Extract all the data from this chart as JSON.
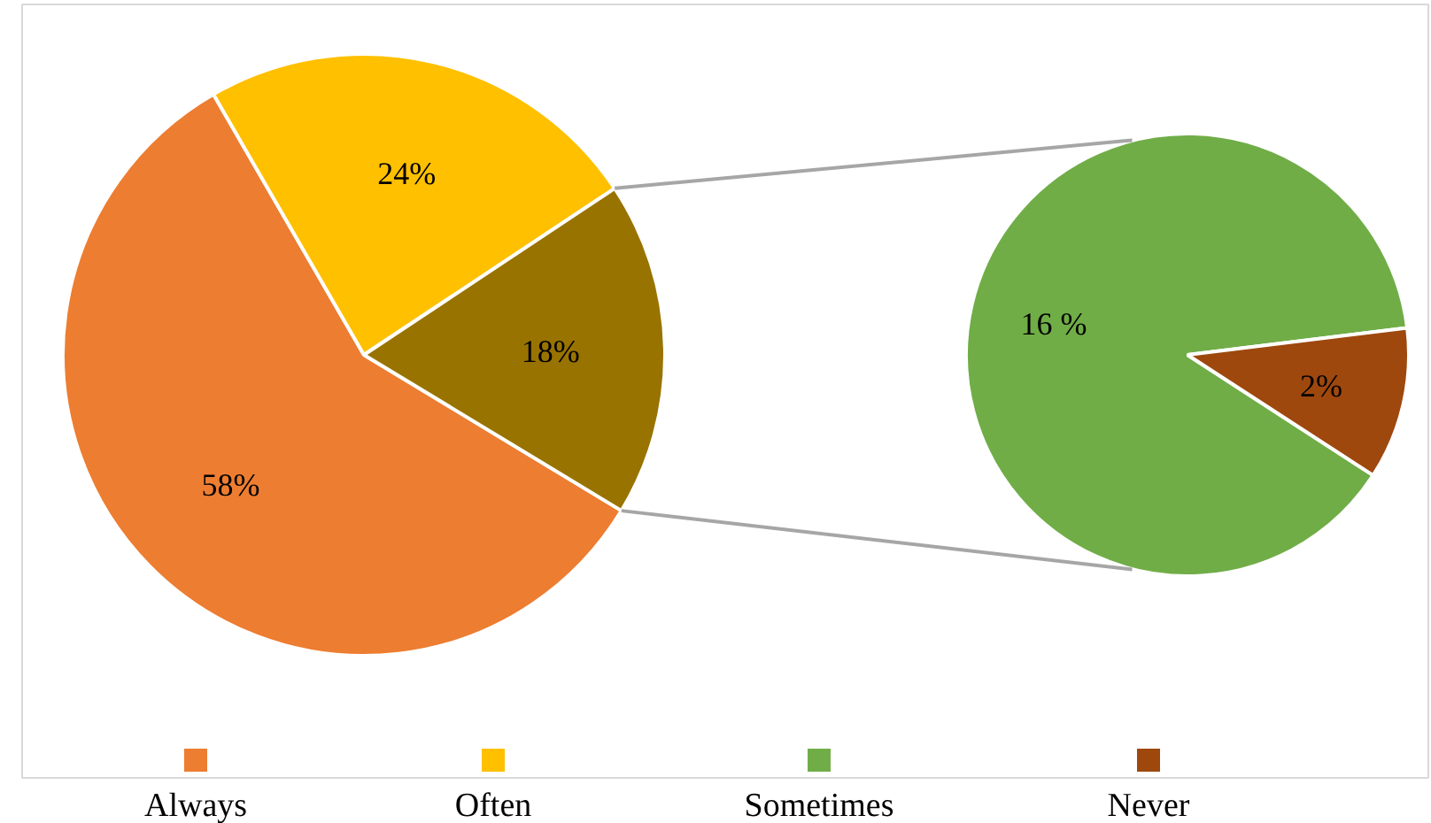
{
  "chart_data": [
    {
      "type": "pie",
      "categories": [
        "Always",
        "Often",
        null
      ],
      "values": [
        58,
        24,
        18
      ],
      "colors": [
        "#ed7d31",
        "#ffc000",
        "#997300"
      ],
      "value_labels": [
        "58%",
        "24%",
        "18%"
      ],
      "legend": "bottom"
    },
    {
      "type": "pie",
      "categories": [
        "Sometimes",
        "Never"
      ],
      "values": [
        16,
        2
      ],
      "colors": [
        "#70ad47",
        "#9e480e"
      ],
      "value_labels": [
        "16 %",
        "2%"
      ],
      "legend": "bottom"
    }
  ]
}
